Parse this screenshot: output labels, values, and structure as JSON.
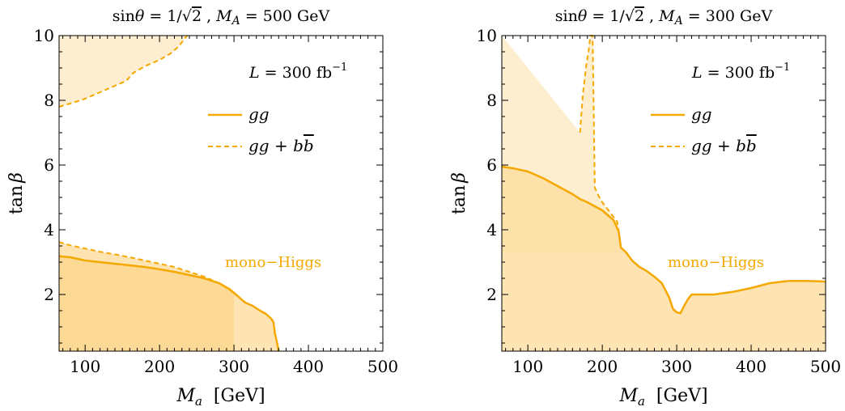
{
  "chart_data": [
    {
      "type": "area",
      "title": "sinθ = 1/√2 , M_A = 500 GeV",
      "title_parts": [
        "sin",
        "θ",
        " = 1/",
        "√",
        "2",
        " , ",
        "M",
        "A",
        " = 500 GeV"
      ],
      "xlabel": "M_a  [GeV]",
      "xlabel_parts": [
        "M",
        "a",
        "  [GeV]"
      ],
      "ylabel": "tan β",
      "ylabel_parts": [
        "tan",
        "β"
      ],
      "xlim": [
        65,
        500
      ],
      "ylim": [
        0.25,
        10
      ],
      "xticks": [
        100,
        200,
        300,
        400,
        500
      ],
      "yticks": [
        2,
        4,
        6,
        8,
        10
      ],
      "luminosity": {
        "label": "L = 300 fb",
        "parts": [
          "L",
          " = 300 fb",
          "−1"
        ]
      },
      "annotation": "mono−Higgs",
      "legend_position": "top-right",
      "series": [
        {
          "name": "gg",
          "style": "solid",
          "region": "below",
          "x": [
            65,
            80,
            100,
            120,
            140,
            160,
            180,
            200,
            220,
            240,
            260,
            280,
            295,
            305,
            315,
            325,
            335,
            343,
            350,
            353,
            355,
            358,
            360
          ],
          "y": [
            3.18,
            3.15,
            3.05,
            3.0,
            2.95,
            2.9,
            2.85,
            2.78,
            2.7,
            2.6,
            2.5,
            2.35,
            2.15,
            1.95,
            1.75,
            1.65,
            1.5,
            1.4,
            1.25,
            1.15,
            0.8,
            0.5,
            0.25
          ]
        },
        {
          "name": "gg + bb̄",
          "legend_parts": [
            "gg",
            " + ",
            "b",
            "b"
          ],
          "style": "dashed",
          "region": "below",
          "x": [
            65,
            80,
            100,
            120,
            140,
            160,
            180,
            200,
            220,
            240,
            260,
            280,
            300
          ],
          "y": [
            3.62,
            3.52,
            3.42,
            3.32,
            3.24,
            3.15,
            3.05,
            2.95,
            2.85,
            2.7,
            2.55,
            2.35,
            2.05
          ]
        },
        {
          "name": "gg + bb̄",
          "style": "dashed",
          "region": "above",
          "x": [
            65,
            80,
            100,
            120,
            140,
            155,
            165,
            180,
            200,
            215,
            225,
            232,
            237
          ],
          "y": [
            7.8,
            7.9,
            8.05,
            8.25,
            8.45,
            8.6,
            8.85,
            9.05,
            9.25,
            9.45,
            9.65,
            9.85,
            10.0
          ]
        }
      ]
    },
    {
      "type": "area",
      "title": "sinθ = 1/√2 , M_A = 300 GeV",
      "title_parts": [
        "sin",
        "θ",
        " = 1/",
        "√",
        "2",
        " , ",
        "M",
        "A",
        " = 300 GeV"
      ],
      "xlabel": "M_a  [GeV]",
      "xlabel_parts": [
        "M",
        "a",
        "  [GeV]"
      ],
      "ylabel": "tan β",
      "ylabel_parts": [
        "tan",
        "β"
      ],
      "xlim": [
        65,
        500
      ],
      "ylim": [
        0.25,
        10
      ],
      "xticks": [
        100,
        200,
        300,
        400,
        500
      ],
      "yticks": [
        2,
        4,
        6,
        8,
        10
      ],
      "luminosity": {
        "label": "L = 300 fb",
        "parts": [
          "L",
          " = 300 fb",
          "−1"
        ]
      },
      "annotation": "mono−Higgs",
      "legend_position": "top-right",
      "series": [
        {
          "name": "gg",
          "style": "solid",
          "region": "below",
          "x": [
            65,
            80,
            100,
            120,
            140,
            160,
            170,
            180,
            200,
            215,
            222,
            225,
            232,
            240,
            250,
            260,
            270,
            280,
            290,
            295,
            300,
            305,
            310,
            315,
            320,
            335,
            350,
            375,
            400,
            425,
            450,
            475,
            500
          ],
          "y": [
            5.95,
            5.9,
            5.8,
            5.6,
            5.35,
            5.1,
            4.95,
            4.85,
            4.6,
            4.3,
            3.95,
            3.45,
            3.3,
            3.05,
            2.85,
            2.72,
            2.55,
            2.35,
            1.9,
            1.55,
            1.45,
            1.42,
            1.65,
            1.85,
            2.0,
            2.0,
            2.0,
            2.08,
            2.2,
            2.35,
            2.42,
            2.42,
            2.4
          ]
        },
        {
          "name": "gg + bb̄",
          "legend_parts": [
            "gg",
            " + ",
            "b",
            "b"
          ],
          "style": "dashed",
          "region": "above",
          "x": [
            170,
            172,
            174,
            176,
            178,
            180,
            182,
            184,
            187,
            190,
            195,
            200,
            210,
            220,
            222,
            225,
            232
          ],
          "y": [
            7.0,
            7.6,
            8.2,
            8.6,
            9.0,
            9.3,
            9.6,
            10.0,
            10.0,
            5.3,
            5.05,
            4.85,
            4.55,
            4.25,
            3.95,
            3.45,
            3.3
          ]
        }
      ]
    }
  ]
}
